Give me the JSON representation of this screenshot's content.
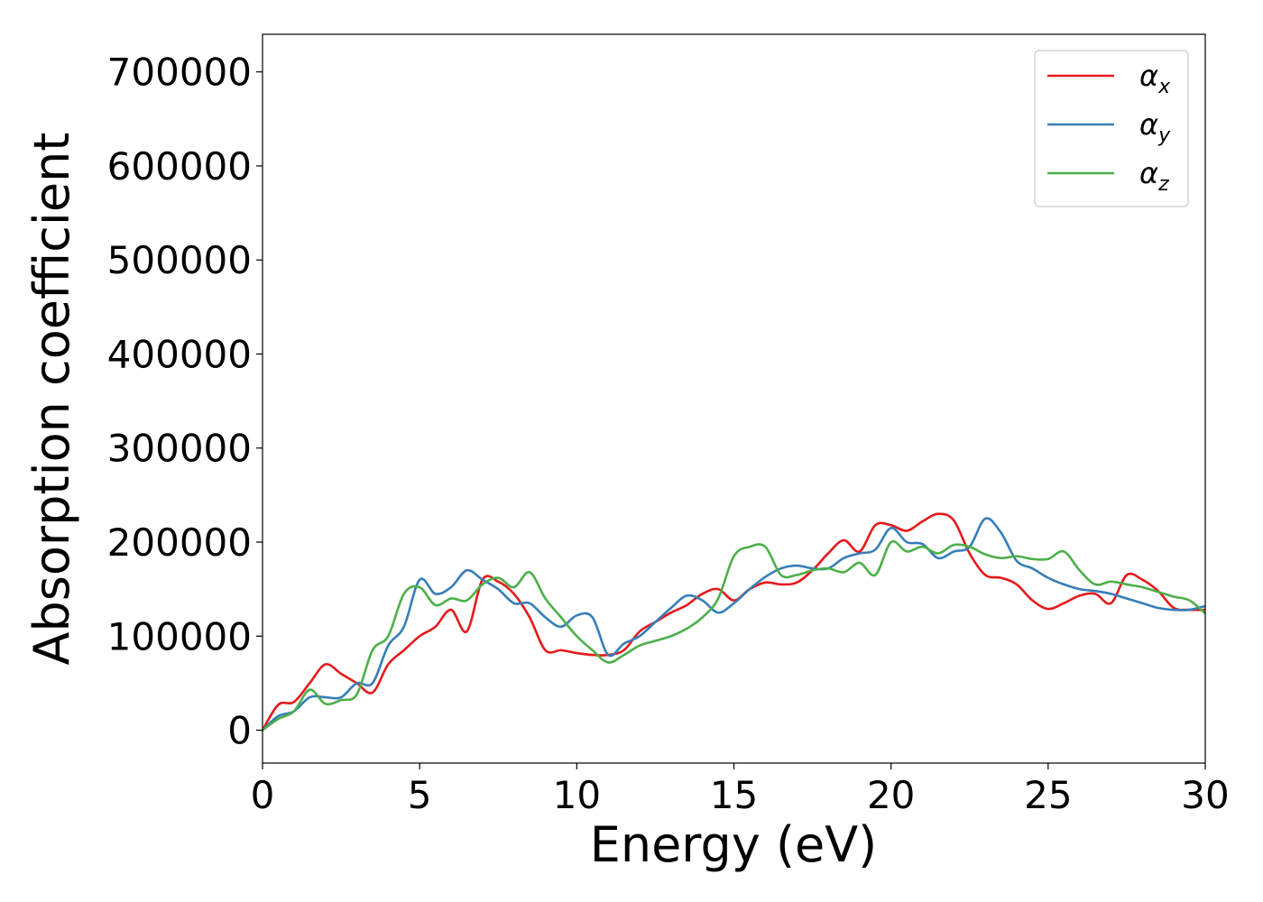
{
  "chart_data": {
    "type": "line",
    "title": "",
    "xlabel": "Energy (eV)",
    "ylabel": "Absorption coefficient",
    "xlim": [
      0,
      30
    ],
    "ylim": [
      -35000,
      740000
    ],
    "xticks": [
      0,
      5,
      10,
      15,
      20,
      25,
      30
    ],
    "yticks": [
      0,
      100000,
      200000,
      300000,
      400000,
      500000,
      600000,
      700000
    ],
    "grid": false,
    "legend_position": "top-right",
    "series": [
      {
        "name": "α_x",
        "name_base": "α",
        "name_sub": "x",
        "color": "#e41a1c",
        "x": [
          0,
          0.5,
          1,
          1.5,
          2,
          2.5,
          3,
          3.5,
          4,
          4.5,
          5,
          5.5,
          6,
          6.5,
          7,
          7.5,
          8,
          8.5,
          9,
          9.5,
          10,
          10.5,
          11,
          11.5,
          12,
          12.5,
          13,
          13.5,
          14,
          14.5,
          15,
          15.5,
          16,
          16.5,
          17,
          17.5,
          18,
          18.5,
          19,
          19.5,
          20,
          20.5,
          21,
          21.5,
          22,
          22.5,
          23,
          23.5,
          24,
          24.5,
          25,
          25.5,
          26,
          26.5,
          27,
          27.5,
          28,
          28.5,
          29,
          29.5,
          30
        ],
        "y": [
          0,
          27000,
          30000,
          50000,
          70000,
          60000,
          50000,
          40000,
          70000,
          85000,
          100000,
          110000,
          128000,
          105000,
          160000,
          158000,
          145000,
          120000,
          85000,
          85000,
          82000,
          80000,
          80000,
          85000,
          105000,
          115000,
          125000,
          133000,
          145000,
          150000,
          138000,
          150000,
          157000,
          155000,
          157000,
          170000,
          188000,
          202000,
          190000,
          218000,
          218000,
          212000,
          222000,
          230000,
          223000,
          188000,
          165000,
          162000,
          155000,
          138000,
          129000,
          135000,
          143000,
          145000,
          135000,
          165000,
          160000,
          148000,
          130000,
          128000,
          128000
        ]
      },
      {
        "name": "α_y",
        "name_base": "α",
        "name_sub": "y",
        "color": "#377eb8",
        "x": [
          0,
          0.5,
          1,
          1.5,
          2,
          2.5,
          3,
          3.5,
          4,
          4.5,
          5,
          5.5,
          6,
          6.5,
          7,
          7.5,
          8,
          8.5,
          9,
          9.5,
          10,
          10.5,
          11,
          11.5,
          12,
          12.5,
          13,
          13.5,
          14,
          14.5,
          15,
          15.5,
          16,
          16.5,
          17,
          17.5,
          18,
          18.5,
          19,
          19.5,
          20,
          20.5,
          21,
          21.5,
          22,
          22.5,
          23,
          23.5,
          24,
          24.5,
          25,
          25.5,
          26,
          26.5,
          27,
          27.5,
          28,
          28.5,
          29,
          29.5,
          30
        ],
        "y": [
          0,
          15000,
          20000,
          35000,
          35000,
          35000,
          50000,
          50000,
          90000,
          110000,
          160000,
          145000,
          152000,
          170000,
          160000,
          150000,
          135000,
          135000,
          120000,
          110000,
          122000,
          120000,
          80000,
          92000,
          100000,
          115000,
          130000,
          143000,
          138000,
          125000,
          135000,
          150000,
          163000,
          172000,
          175000,
          172000,
          172000,
          183000,
          188000,
          192000,
          215000,
          200000,
          198000,
          183000,
          190000,
          195000,
          225000,
          210000,
          180000,
          172000,
          162000,
          155000,
          150000,
          148000,
          145000,
          140000,
          135000,
          130000,
          128000,
          128000,
          132000
        ]
      },
      {
        "name": "α_z",
        "name_base": "α",
        "name_sub": "z",
        "color": "#4daf4a",
        "x": [
          0,
          0.5,
          1,
          1.5,
          2,
          2.5,
          3,
          3.5,
          4,
          4.5,
          5,
          5.5,
          6,
          6.5,
          7,
          7.5,
          8,
          8.5,
          9,
          9.5,
          10,
          10.5,
          11,
          11.5,
          12,
          12.5,
          13,
          13.5,
          14,
          14.5,
          15,
          15.5,
          16,
          16.5,
          17,
          17.5,
          18,
          18.5,
          19,
          19.5,
          20,
          20.5,
          21,
          21.5,
          22,
          22.5,
          23,
          23.5,
          24,
          24.5,
          25,
          25.5,
          26,
          26.5,
          27,
          27.5,
          28,
          28.5,
          29,
          29.5,
          30
        ],
        "y": [
          0,
          12000,
          20000,
          43000,
          28000,
          32000,
          38000,
          85000,
          100000,
          145000,
          152000,
          133000,
          140000,
          138000,
          155000,
          162000,
          152000,
          168000,
          140000,
          120000,
          100000,
          85000,
          72000,
          80000,
          90000,
          95000,
          100000,
          108000,
          120000,
          140000,
          185000,
          195000,
          195000,
          165000,
          165000,
          170000,
          172000,
          168000,
          178000,
          165000,
          200000,
          190000,
          195000,
          188000,
          197000,
          195000,
          187000,
          183000,
          185000,
          182000,
          182000,
          190000,
          170000,
          155000,
          158000,
          155000,
          152000,
          147000,
          142000,
          138000,
          124000
        ]
      }
    ]
  }
}
